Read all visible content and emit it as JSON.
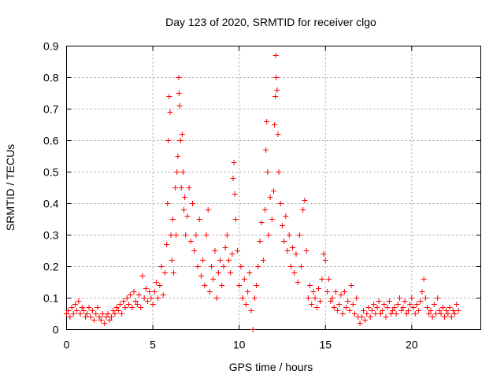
{
  "chart_data": {
    "type": "scatter",
    "title": "Day 123 of 2020, SRMTID for receiver clgo",
    "xlabel": "GPS time / hours",
    "ylabel": "SRMTID / TECUs",
    "xlim": [
      0,
      24
    ],
    "ylim": [
      0,
      0.9
    ],
    "xticks": [
      0,
      5,
      10,
      15,
      20
    ],
    "xtick_labels": [
      "0",
      "5",
      "10",
      "15",
      "20"
    ],
    "yticks": [
      0,
      0.1,
      0.2,
      0.3,
      0.4,
      0.5,
      0.6,
      0.7,
      0.8,
      0.9
    ],
    "ytick_labels": [
      "0",
      "0.1",
      "0.2",
      "0.3",
      "0.4",
      "0.5",
      "0.6",
      "0.7",
      "0.8",
      "0.9"
    ],
    "grid": true,
    "marker": "+",
    "color": "#ff0000",
    "series": [
      {
        "name": "SRMTID",
        "points": [
          [
            0.0,
            0.05
          ],
          [
            0.1,
            0.06
          ],
          [
            0.2,
            0.04
          ],
          [
            0.3,
            0.07
          ],
          [
            0.4,
            0.05
          ],
          [
            0.5,
            0.08
          ],
          [
            0.6,
            0.06
          ],
          [
            0.7,
            0.09
          ],
          [
            0.8,
            0.05
          ],
          [
            0.9,
            0.07
          ],
          [
            1.0,
            0.06
          ],
          [
            1.1,
            0.04
          ],
          [
            1.2,
            0.05
          ],
          [
            1.3,
            0.07
          ],
          [
            1.4,
            0.04
          ],
          [
            1.5,
            0.06
          ],
          [
            1.6,
            0.03
          ],
          [
            1.7,
            0.05
          ],
          [
            1.8,
            0.07
          ],
          [
            1.9,
            0.04
          ],
          [
            2.0,
            0.03
          ],
          [
            2.1,
            0.05
          ],
          [
            2.2,
            0.02
          ],
          [
            2.3,
            0.04
          ],
          [
            2.4,
            0.05
          ],
          [
            2.5,
            0.03
          ],
          [
            2.6,
            0.04
          ],
          [
            2.7,
            0.06
          ],
          [
            2.8,
            0.05
          ],
          [
            2.9,
            0.07
          ],
          [
            3.0,
            0.06
          ],
          [
            3.1,
            0.08
          ],
          [
            3.2,
            0.05
          ],
          [
            3.3,
            0.09
          ],
          [
            3.4,
            0.07
          ],
          [
            3.5,
            0.1
          ],
          [
            3.6,
            0.08
          ],
          [
            3.7,
            0.11
          ],
          [
            3.8,
            0.07
          ],
          [
            3.9,
            0.12
          ],
          [
            4.0,
            0.09
          ],
          [
            4.1,
            0.08
          ],
          [
            4.2,
            0.11
          ],
          [
            4.3,
            0.07
          ],
          [
            4.4,
            0.17
          ],
          [
            4.5,
            0.1
          ],
          [
            4.6,
            0.13
          ],
          [
            4.7,
            0.09
          ],
          [
            4.8,
            0.12
          ],
          [
            4.9,
            0.1
          ],
          [
            5.0,
            0.08
          ],
          [
            5.1,
            0.12
          ],
          [
            5.2,
            0.15
          ],
          [
            5.3,
            0.1
          ],
          [
            5.4,
            0.14
          ],
          [
            5.5,
            0.2
          ],
          [
            5.6,
            0.11
          ],
          [
            5.7,
            0.18
          ],
          [
            5.8,
            0.27
          ],
          [
            5.85,
            0.4
          ],
          [
            5.9,
            0.6
          ],
          [
            5.95,
            0.74
          ],
          [
            6.0,
            0.69
          ],
          [
            6.05,
            0.3
          ],
          [
            6.1,
            0.22
          ],
          [
            6.15,
            0.35
          ],
          [
            6.2,
            0.18
          ],
          [
            6.3,
            0.45
          ],
          [
            6.35,
            0.3
          ],
          [
            6.4,
            0.5
          ],
          [
            6.45,
            0.55
          ],
          [
            6.5,
            0.8
          ],
          [
            6.52,
            0.75
          ],
          [
            6.55,
            0.71
          ],
          [
            6.6,
            0.6
          ],
          [
            6.65,
            0.45
          ],
          [
            6.7,
            0.62
          ],
          [
            6.75,
            0.5
          ],
          [
            6.8,
            0.38
          ],
          [
            6.85,
            0.42
          ],
          [
            6.9,
            0.3
          ],
          [
            7.0,
            0.36
          ],
          [
            7.1,
            0.45
          ],
          [
            7.2,
            0.28
          ],
          [
            7.3,
            0.4
          ],
          [
            7.4,
            0.25
          ],
          [
            7.5,
            0.3
          ],
          [
            7.6,
            0.2
          ],
          [
            7.7,
            0.35
          ],
          [
            7.8,
            0.17
          ],
          [
            7.9,
            0.22
          ],
          [
            8.0,
            0.14
          ],
          [
            8.1,
            0.3
          ],
          [
            8.2,
            0.38
          ],
          [
            8.3,
            0.12
          ],
          [
            8.4,
            0.2
          ],
          [
            8.5,
            0.16
          ],
          [
            8.6,
            0.25
          ],
          [
            8.7,
            0.1
          ],
          [
            8.8,
            0.18
          ],
          [
            8.9,
            0.22
          ],
          [
            9.0,
            0.14
          ],
          [
            9.1,
            0.2
          ],
          [
            9.2,
            0.26
          ],
          [
            9.3,
            0.3
          ],
          [
            9.4,
            0.22
          ],
          [
            9.5,
            0.18
          ],
          [
            9.6,
            0.24
          ],
          [
            9.65,
            0.48
          ],
          [
            9.7,
            0.53
          ],
          [
            9.75,
            0.43
          ],
          [
            9.8,
            0.35
          ],
          [
            9.9,
            0.25
          ],
          [
            10.0,
            0.14
          ],
          [
            10.1,
            0.2
          ],
          [
            10.2,
            0.1
          ],
          [
            10.3,
            0.16
          ],
          [
            10.4,
            0.08
          ],
          [
            10.5,
            0.12
          ],
          [
            10.6,
            0.18
          ],
          [
            10.7,
            0.06
          ],
          [
            10.8,
            0.0
          ],
          [
            10.9,
            0.1
          ],
          [
            11.0,
            0.14
          ],
          [
            11.1,
            0.2
          ],
          [
            11.2,
            0.28
          ],
          [
            11.3,
            0.34
          ],
          [
            11.4,
            0.22
          ],
          [
            11.5,
            0.38
          ],
          [
            11.55,
            0.57
          ],
          [
            11.6,
            0.66
          ],
          [
            11.65,
            0.5
          ],
          [
            11.7,
            0.3
          ],
          [
            11.8,
            0.42
          ],
          [
            11.9,
            0.35
          ],
          [
            12.0,
            0.44
          ],
          [
            12.05,
            0.65
          ],
          [
            12.1,
            0.74
          ],
          [
            12.12,
            0.87
          ],
          [
            12.15,
            0.8
          ],
          [
            12.2,
            0.76
          ],
          [
            12.25,
            0.62
          ],
          [
            12.3,
            0.5
          ],
          [
            12.4,
            0.4
          ],
          [
            12.5,
            0.33
          ],
          [
            12.6,
            0.28
          ],
          [
            12.7,
            0.36
          ],
          [
            12.8,
            0.25
          ],
          [
            12.9,
            0.3
          ],
          [
            13.0,
            0.2
          ],
          [
            13.1,
            0.26
          ],
          [
            13.2,
            0.18
          ],
          [
            13.3,
            0.24
          ],
          [
            13.4,
            0.15
          ],
          [
            13.5,
            0.3
          ],
          [
            13.6,
            0.2
          ],
          [
            13.7,
            0.38
          ],
          [
            13.8,
            0.41
          ],
          [
            13.9,
            0.25
          ],
          [
            14.0,
            0.1
          ],
          [
            14.1,
            0.14
          ],
          [
            14.2,
            0.08
          ],
          [
            14.3,
            0.12
          ],
          [
            14.4,
            0.1
          ],
          [
            14.5,
            0.07
          ],
          [
            14.6,
            0.13
          ],
          [
            14.7,
            0.09
          ],
          [
            14.8,
            0.16
          ],
          [
            14.9,
            0.24
          ],
          [
            15.0,
            0.22
          ],
          [
            15.1,
            0.12
          ],
          [
            15.2,
            0.16
          ],
          [
            15.3,
            0.09
          ],
          [
            15.4,
            0.1
          ],
          [
            15.5,
            0.07
          ],
          [
            15.6,
            0.12
          ],
          [
            15.7,
            0.06
          ],
          [
            15.8,
            0.08
          ],
          [
            15.9,
            0.11
          ],
          [
            16.0,
            0.05
          ],
          [
            16.1,
            0.12
          ],
          [
            16.2,
            0.07
          ],
          [
            16.3,
            0.09
          ],
          [
            16.4,
            0.06
          ],
          [
            16.5,
            0.14
          ],
          [
            16.6,
            0.08
          ],
          [
            16.7,
            0.05
          ],
          [
            16.8,
            0.1
          ],
          [
            16.9,
            0.04
          ],
          [
            17.0,
            0.02
          ],
          [
            17.1,
            0.04
          ],
          [
            17.2,
            0.06
          ],
          [
            17.3,
            0.03
          ],
          [
            17.4,
            0.05
          ],
          [
            17.5,
            0.07
          ],
          [
            17.6,
            0.04
          ],
          [
            17.7,
            0.06
          ],
          [
            17.8,
            0.08
          ],
          [
            17.9,
            0.05
          ],
          [
            18.0,
            0.07
          ],
          [
            18.1,
            0.09
          ],
          [
            18.2,
            0.05
          ],
          [
            18.3,
            0.06
          ],
          [
            18.4,
            0.08
          ],
          [
            18.5,
            0.04
          ],
          [
            18.6,
            0.07
          ],
          [
            18.7,
            0.09
          ],
          [
            18.8,
            0.05
          ],
          [
            18.9,
            0.06
          ],
          [
            19.0,
            0.07
          ],
          [
            19.1,
            0.05
          ],
          [
            19.2,
            0.08
          ],
          [
            19.3,
            0.1
          ],
          [
            19.4,
            0.06
          ],
          [
            19.5,
            0.07
          ],
          [
            19.6,
            0.09
          ],
          [
            19.7,
            0.05
          ],
          [
            19.8,
            0.06
          ],
          [
            19.9,
            0.08
          ],
          [
            20.0,
            0.1
          ],
          [
            20.1,
            0.07
          ],
          [
            20.2,
            0.05
          ],
          [
            20.3,
            0.08
          ],
          [
            20.4,
            0.06
          ],
          [
            20.5,
            0.09
          ],
          [
            20.6,
            0.12
          ],
          [
            20.7,
            0.16
          ],
          [
            20.8,
            0.1
          ],
          [
            20.9,
            0.07
          ],
          [
            21.0,
            0.05
          ],
          [
            21.1,
            0.06
          ],
          [
            21.2,
            0.04
          ],
          [
            21.3,
            0.08
          ],
          [
            21.4,
            0.05
          ],
          [
            21.5,
            0.1
          ],
          [
            21.6,
            0.06
          ],
          [
            21.7,
            0.05
          ],
          [
            21.8,
            0.07
          ],
          [
            21.9,
            0.04
          ],
          [
            22.0,
            0.06
          ],
          [
            22.1,
            0.05
          ],
          [
            22.2,
            0.07
          ],
          [
            22.3,
            0.04
          ],
          [
            22.4,
            0.06
          ],
          [
            22.5,
            0.05
          ],
          [
            22.6,
            0.08
          ],
          [
            22.7,
            0.06
          ]
        ]
      }
    ]
  }
}
